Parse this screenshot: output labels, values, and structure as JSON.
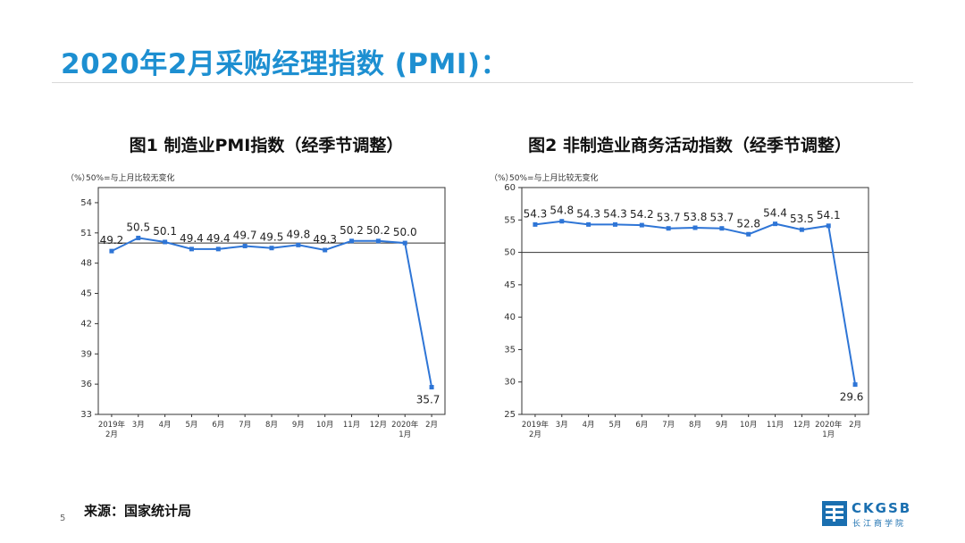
{
  "slide": {
    "title": "2020年2月采购经理指数 (PMI)：",
    "source": "来源：国家统计局",
    "page_number": "5",
    "logo": {
      "name": "CKGSB",
      "subtitle": "长江商学院"
    }
  },
  "chart_data": [
    {
      "type": "line",
      "title": "图1 制造业PMI指数（经季节调整）",
      "unit_label": "（%）",
      "note": "50%=与上月比较无变化",
      "categories": [
        [
          "2019年",
          "2月"
        ],
        [
          "3月"
        ],
        [
          "4月"
        ],
        [
          "5月"
        ],
        [
          "6月"
        ],
        [
          "7月"
        ],
        [
          "8月"
        ],
        [
          "9月"
        ],
        [
          "10月"
        ],
        [
          "11月"
        ],
        [
          "12月"
        ],
        [
          "2020年",
          "1月"
        ],
        [
          "2月"
        ]
      ],
      "series": [
        {
          "values": [
            49.2,
            50.5,
            50.1,
            49.4,
            49.4,
            49.7,
            49.5,
            49.8,
            49.3,
            50.2,
            50.2,
            50.0,
            35.7
          ]
        }
      ],
      "data_labels": [
        "49.2",
        "50.5",
        "50.1",
        "49.4",
        "49.4",
        "49.7",
        "49.5",
        "49.8",
        "49.3",
        "50.2",
        "50.2",
        "50.0",
        "35.7"
      ],
      "yticks": [
        33,
        36,
        39,
        42,
        45,
        48,
        51,
        54
      ],
      "ylim": [
        33,
        55.5
      ],
      "reference_line": 50,
      "grid": false,
      "color": "#2e75d6"
    },
    {
      "type": "line",
      "title": "图2 非制造业商务活动指数（经季节调整）",
      "unit_label": "（%）",
      "note": "50%=与上月比较无变化",
      "categories": [
        [
          "2019年",
          "2月"
        ],
        [
          "3月"
        ],
        [
          "4月"
        ],
        [
          "5月"
        ],
        [
          "6月"
        ],
        [
          "7月"
        ],
        [
          "8月"
        ],
        [
          "9月"
        ],
        [
          "10月"
        ],
        [
          "11月"
        ],
        [
          "12月"
        ],
        [
          "2020年",
          "1月"
        ],
        [
          "2月"
        ]
      ],
      "series": [
        {
          "values": [
            54.3,
            54.8,
            54.3,
            54.3,
            54.2,
            53.7,
            53.8,
            53.7,
            52.8,
            54.4,
            53.5,
            54.1,
            29.6
          ]
        }
      ],
      "data_labels": [
        "54.3",
        "54.8",
        "54.3",
        "54.3",
        "54.2",
        "53.7",
        "53.8",
        "53.7",
        "52.8",
        "54.4",
        "53.5",
        "54.1",
        "29.6"
      ],
      "yticks": [
        25,
        30,
        35,
        40,
        45,
        50,
        55,
        60
      ],
      "ylim": [
        25,
        60
      ],
      "reference_line": 50,
      "grid": false,
      "color": "#2e75d6"
    }
  ]
}
